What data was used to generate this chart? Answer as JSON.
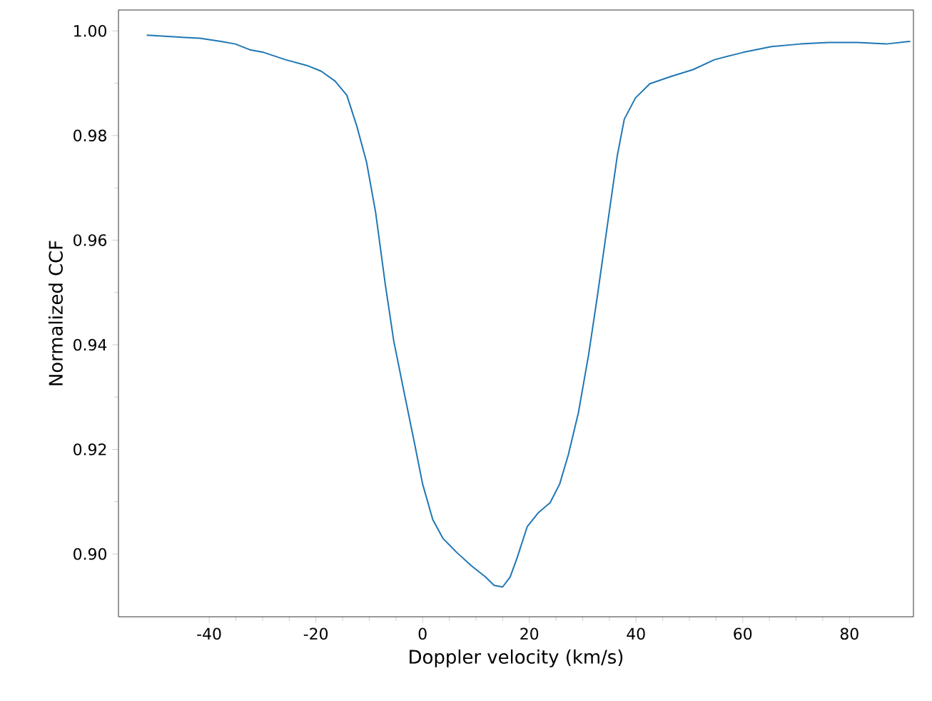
{
  "chart_data": {
    "type": "line",
    "xlabel": "Doppler velocity (km/s)",
    "ylabel": "Normalized CCF",
    "xlim": [
      -57,
      92
    ],
    "ylim": [
      0.888,
      1.004
    ],
    "xticks": [
      -40,
      -20,
      0,
      20,
      40,
      60,
      80
    ],
    "yticks": [
      {
        "value": 0.9,
        "label": "0.90"
      },
      {
        "value": 0.92,
        "label": "0.92"
      },
      {
        "value": 0.94,
        "label": "0.94"
      },
      {
        "value": 0.96,
        "label": "0.96"
      },
      {
        "value": 0.98,
        "label": "0.98"
      },
      {
        "value": 1.0,
        "label": "1.00"
      }
    ],
    "grid": false,
    "marker": "none",
    "line_style": "solid",
    "series": [
      {
        "color": "#1f77b4",
        "x": [
          -51.7,
          -47.2,
          -41.8,
          -37.8,
          -35.1,
          -32.4,
          -29.8,
          -25.7,
          -21.7,
          -19.0,
          -16.4,
          -14.2,
          -12.3,
          -10.5,
          -8.8,
          -7.0,
          -5.4,
          -3.5,
          -1.6,
          0,
          1.9,
          3.8,
          6.4,
          9.1,
          11.8,
          13.4,
          15.0,
          16.4,
          17.7,
          19.6,
          21.7,
          23.9,
          25.7,
          27.3,
          29.2,
          31.1,
          32.7,
          34.6,
          36.5,
          37.8,
          39.9,
          42.6,
          46.6,
          50.7,
          54.7,
          60.1,
          65.4,
          70.8,
          76.1,
          81.5,
          86.9,
          91.4
        ],
        "values": [
          0.9992,
          0.9989,
          0.9986,
          0.998,
          0.9975,
          0.9964,
          0.9959,
          0.9945,
          0.9934,
          0.9923,
          0.9904,
          0.9877,
          0.9817,
          0.9749,
          0.9653,
          0.9516,
          0.9407,
          0.9311,
          0.9216,
          0.9134,
          0.9066,
          0.903,
          0.9003,
          0.8978,
          0.8956,
          0.894,
          0.8937,
          0.8956,
          0.8992,
          0.9052,
          0.9079,
          0.9098,
          0.9134,
          0.9189,
          0.927,
          0.938,
          0.9489,
          0.9626,
          0.9762,
          0.9831,
          0.9872,
          0.9899,
          0.9913,
          0.9926,
          0.9945,
          0.9959,
          0.997,
          0.9975,
          0.9978,
          0.9978,
          0.9975,
          0.998
        ]
      }
    ]
  }
}
